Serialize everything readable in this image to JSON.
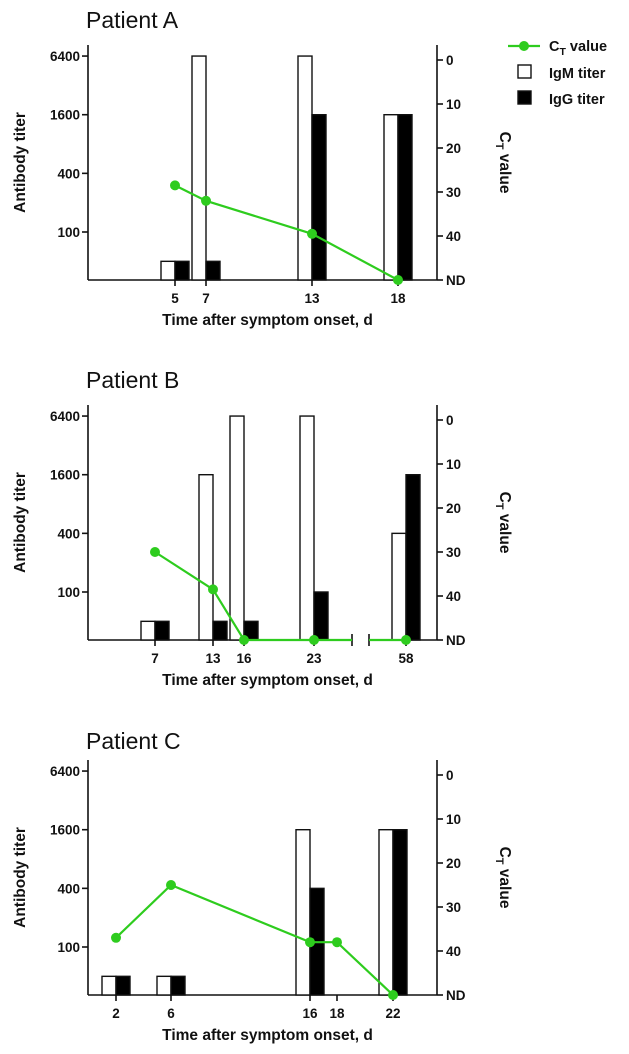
{
  "legend": {
    "ct_label": "C",
    "ct_sub": "T",
    "ct_suffix": " value",
    "igm_label": "IgM titer",
    "igg_label": "IgG titer"
  },
  "colors": {
    "ct_line": "#2ecc1e",
    "igm_fill": "#ffffff",
    "igg_fill": "#000000",
    "axis": "#111111"
  },
  "chart_data": [
    {
      "type": "bar",
      "title": "Patient A",
      "xlabel": "Time after symptom onset, d",
      "ylabel": "Antibody titer",
      "y2label_main": "C",
      "y2label_sub": "T",
      "y2label_suffix": " value",
      "y_ticks": [
        "100",
        "400",
        "1600",
        "6400"
      ],
      "y2_ticks": [
        "0",
        "10",
        "20",
        "30",
        "40",
        "ND"
      ],
      "x_ticks": [
        "5",
        "7",
        "13",
        "18"
      ],
      "x_axis_break": false,
      "series": [
        {
          "name": "IgM titer",
          "values": [
            50,
            6400,
            6400,
            1600
          ]
        },
        {
          "name": "IgG titer",
          "values": [
            50,
            50,
            1600,
            1600
          ]
        },
        {
          "name": "C value",
          "values": [
            28.5,
            32,
            39.5,
            "ND"
          ]
        }
      ]
    },
    {
      "type": "bar",
      "title": "Patient B",
      "xlabel": "Time after symptom onset, d",
      "ylabel": "Antibody titer",
      "y2label_main": "C",
      "y2label_sub": "T",
      "y2label_suffix": " value",
      "y_ticks": [
        "100",
        "400",
        "1600",
        "6400"
      ],
      "y2_ticks": [
        "0",
        "10",
        "20",
        "30",
        "40",
        "ND"
      ],
      "x_ticks": [
        "7",
        "13",
        "16",
        "23",
        "58"
      ],
      "x_axis_break": true,
      "series": [
        {
          "name": "IgM titer",
          "values": [
            50,
            1600,
            6400,
            6400,
            400
          ]
        },
        {
          "name": "IgG titer",
          "values": [
            50,
            50,
            50,
            100,
            1600
          ]
        },
        {
          "name": "C value",
          "values": [
            30,
            38.5,
            "ND",
            "ND",
            "ND"
          ]
        }
      ]
    },
    {
      "type": "bar",
      "title": "Patient C",
      "xlabel": "Time after symptom onset, d",
      "ylabel": "Antibody titer",
      "y2label_main": "C",
      "y2label_sub": "T",
      "y2label_suffix": " value",
      "y_ticks": [
        "100",
        "400",
        "1600",
        "6400"
      ],
      "y2_ticks": [
        "0",
        "10",
        "20",
        "30",
        "40",
        "ND"
      ],
      "x_ticks": [
        "2",
        "6",
        "16",
        "18",
        "22"
      ],
      "x_axis_break": false,
      "series": [
        {
          "name": "IgM titer",
          "values": [
            50,
            50,
            1600,
            null,
            1600
          ]
        },
        {
          "name": "IgG titer",
          "values": [
            50,
            50,
            400,
            null,
            1600
          ]
        },
        {
          "name": "C value",
          "values": [
            37,
            25,
            38,
            38,
            "ND"
          ]
        }
      ]
    }
  ]
}
